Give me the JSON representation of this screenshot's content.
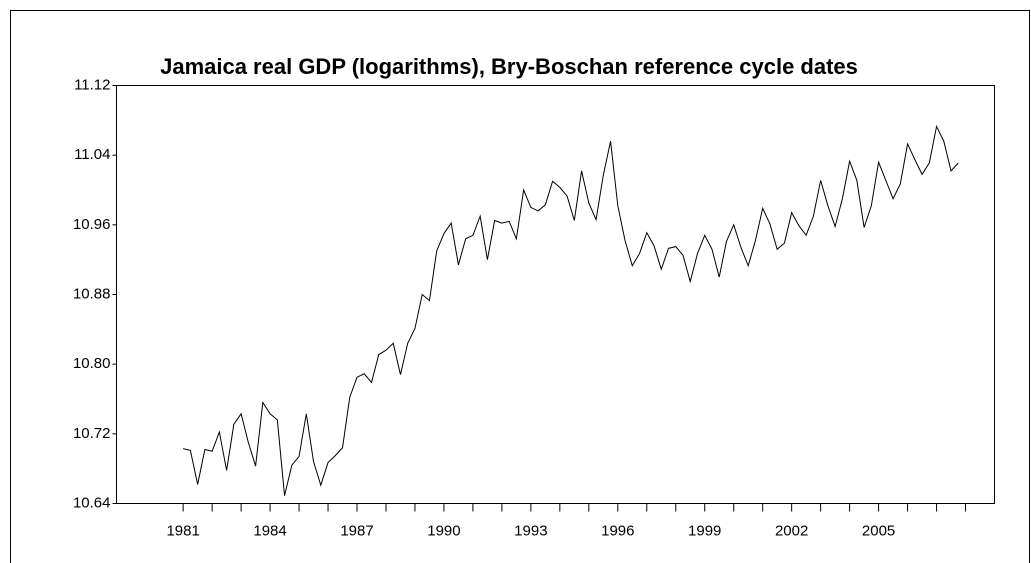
{
  "chart_data": {
    "type": "line",
    "title": "Jamaica real GDP (logarithms), Bry-Boschan reference cycle dates",
    "x": [
      1981.0,
      1981.25,
      1981.5,
      1981.75,
      1982.0,
      1982.25,
      1982.5,
      1982.75,
      1983.0,
      1983.25,
      1983.5,
      1983.75,
      1984.0,
      1984.25,
      1984.5,
      1984.75,
      1985.0,
      1985.25,
      1985.5,
      1985.75,
      1986.0,
      1986.25,
      1986.5,
      1986.75,
      1987.0,
      1987.25,
      1987.5,
      1987.75,
      1988.0,
      1988.25,
      1988.5,
      1988.75,
      1989.0,
      1989.25,
      1989.5,
      1989.75,
      1990.0,
      1990.25,
      1990.5,
      1990.75,
      1991.0,
      1991.25,
      1991.5,
      1991.75,
      1992.0,
      1992.25,
      1992.5,
      1992.75,
      1993.0,
      1993.25,
      1993.5,
      1993.75,
      1994.0,
      1994.25,
      1994.5,
      1994.75,
      1995.0,
      1995.25,
      1995.5,
      1995.75,
      1996.0,
      1996.25,
      1996.5,
      1996.75,
      1997.0,
      1997.25,
      1997.5,
      1997.75,
      1998.0,
      1998.25,
      1998.5,
      1998.75,
      1999.0,
      1999.25,
      1999.5,
      1999.75,
      2000.0,
      2000.25,
      2000.5,
      2000.75,
      2001.0,
      2001.25,
      2001.5,
      2001.75,
      2002.0,
      2002.25,
      2002.5,
      2002.75,
      2003.0,
      2003.25,
      2003.5,
      2003.75,
      2004.0,
      2004.25,
      2004.5,
      2004.75,
      2005.0,
      2005.25,
      2005.5,
      2005.75,
      2006.0,
      2006.25,
      2006.5,
      2006.75,
      2007.0,
      2007.25,
      2007.5,
      2007.75
    ],
    "series": [
      {
        "color": "#000000",
        "values": [
          10.703,
          10.701,
          10.662,
          10.702,
          10.7,
          10.722,
          10.678,
          10.731,
          10.743,
          10.71,
          10.683,
          10.756,
          10.743,
          10.736,
          10.649,
          10.684,
          10.694,
          10.743,
          10.688,
          10.661,
          10.687,
          10.695,
          10.704,
          10.762,
          10.785,
          10.789,
          10.779,
          10.811,
          10.816,
          10.824,
          10.788,
          10.824,
          10.841,
          10.88,
          10.873,
          10.93,
          10.95,
          10.962,
          10.914,
          10.944,
          10.948,
          10.97,
          10.92,
          10.965,
          10.962,
          10.964,
          10.944,
          11.0,
          10.98,
          10.976,
          10.983,
          11.01,
          11.003,
          10.993,
          10.965,
          11.022,
          10.985,
          10.966,
          11.017,
          11.056,
          10.982,
          10.942,
          10.913,
          10.927,
          10.951,
          10.936,
          10.909,
          10.933,
          10.935,
          10.925,
          10.895,
          10.927,
          10.948,
          10.932,
          10.9,
          10.941,
          10.96,
          10.934,
          10.913,
          10.942,
          10.979,
          10.961,
          10.932,
          10.939,
          10.974,
          10.959,
          10.948,
          10.97,
          11.011,
          10.982,
          10.958,
          10.99,
          11.033,
          11.011,
          10.957,
          10.982,
          11.032,
          11.011,
          10.99,
          11.007,
          11.053,
          11.035,
          11.018,
          11.031,
          11.073,
          11.056,
          11.022,
          11.031
        ]
      }
    ],
    "xlim": [
      1978.7,
      2009
    ],
    "xticks": [
      1981,
      1984,
      1987,
      1990,
      1993,
      1996,
      1999,
      2002,
      2005
    ],
    "xminor_ticks": [
      1982,
      1983,
      1985,
      1986,
      1988,
      1989,
      1991,
      1992,
      1994,
      1995,
      1997,
      1998,
      2000,
      2001,
      2003,
      2004,
      2006,
      2007,
      2008
    ],
    "ylim": [
      10.64,
      11.12
    ],
    "yticks": [
      10.64,
      10.72,
      {
        "value": 10.8,
        "label": "10.80"
      },
      10.88,
      10.96,
      11.04,
      11.12
    ],
    "grid": false
  }
}
